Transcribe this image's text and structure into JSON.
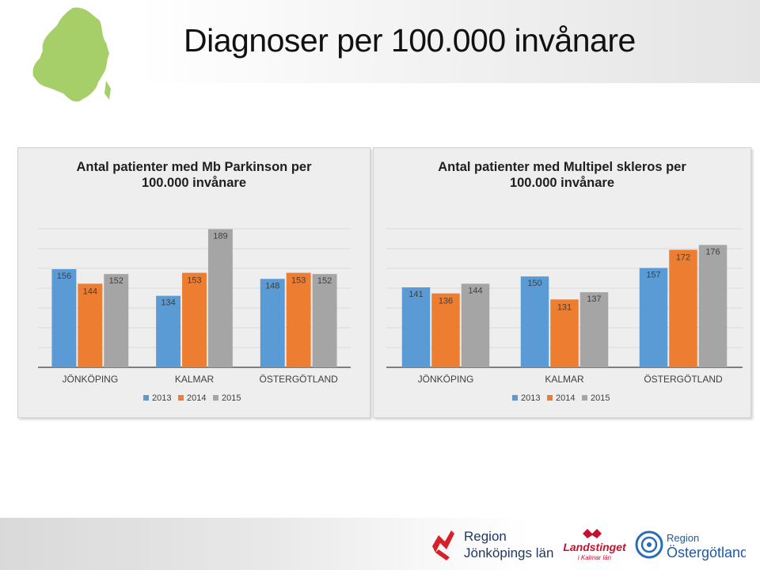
{
  "slide": {
    "title": "Diagnoser per 100.000 invånare"
  },
  "colors": {
    "2013": "#5b9bd5",
    "2014": "#ed7d31",
    "2015": "#a5a5a5",
    "map": "#a6cf6a"
  },
  "chart_data": [
    {
      "type": "bar",
      "title": "Antal patienter med Mb Parkinson per 100.000 invånare",
      "categories": [
        "JÖNKÖPING",
        "KALMAR",
        "ÖSTERGÖTLAND"
      ],
      "series": [
        {
          "name": "2013",
          "values": [
            156,
            134,
            148
          ]
        },
        {
          "name": "2014",
          "values": [
            144,
            153,
            153
          ]
        },
        {
          "name": "2015",
          "values": [
            152,
            189,
            152
          ]
        }
      ],
      "grid": true,
      "legend": "bottom"
    },
    {
      "type": "bar",
      "title": "Antal patienter med Multipel skleros per 100.000 invånare",
      "categories": [
        "JÖNKÖPING",
        "KALMAR",
        "ÖSTERGÖTLAND"
      ],
      "series": [
        {
          "name": "2013",
          "values": [
            141,
            150,
            157
          ]
        },
        {
          "name": "2014",
          "values": [
            136,
            131,
            172
          ]
        },
        {
          "name": "2015",
          "values": [
            144,
            137,
            176
          ]
        }
      ],
      "grid": true,
      "legend": "bottom"
    }
  ],
  "logos": {
    "region_jonkoping": [
      "Region",
      "Jönköpings län"
    ],
    "landstinget_kalmar": [
      "Landstinget",
      "i Kalmar län"
    ],
    "region_ostergotland": [
      "Region",
      "Östergötland"
    ]
  }
}
